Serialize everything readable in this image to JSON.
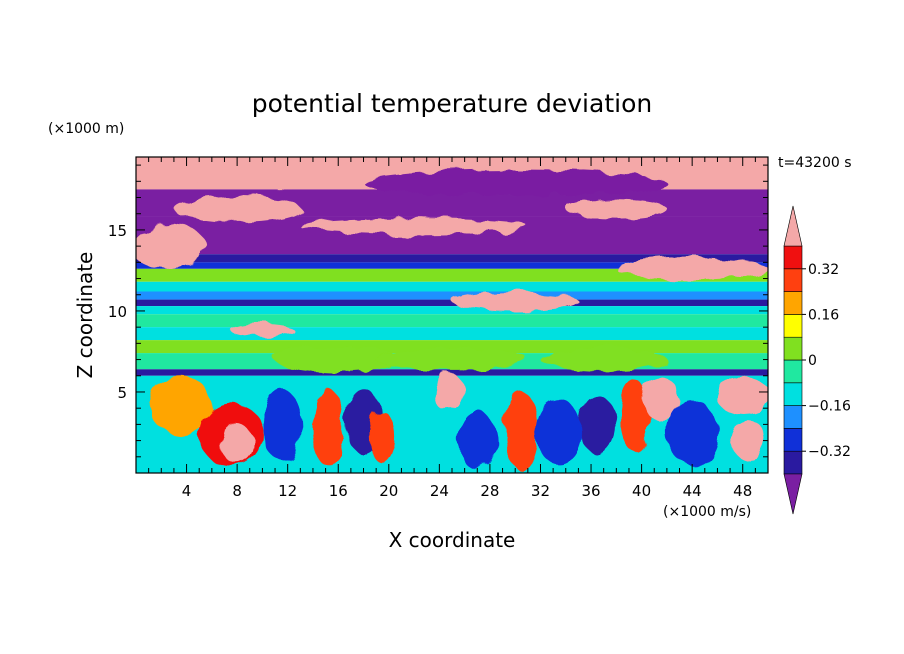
{
  "chart_data": {
    "type": "heatmap",
    "title": "potential temperature deviation",
    "xlabel": "X coordinate",
    "ylabel": "Z coordinate",
    "x_units": "(×1000 m/s)",
    "y_units": "(×1000 m)",
    "time_label": "t=43200 s",
    "xlim": [
      0,
      50
    ],
    "ylim": [
      0,
      19.5
    ],
    "x_ticks": [
      4,
      8,
      12,
      16,
      20,
      24,
      28,
      32,
      36,
      40,
      44,
      48
    ],
    "y_ticks": [
      5,
      10,
      15
    ],
    "colorbar": {
      "levels": [
        -0.4,
        -0.32,
        -0.24,
        -0.16,
        -0.08,
        0,
        0.08,
        0.16,
        0.24,
        0.32,
        0.4
      ],
      "tick_labels": [
        "0.32",
        "0.16",
        "0",
        "−0.16",
        "−0.32"
      ],
      "tick_values": [
        0.32,
        0.16,
        0,
        -0.16,
        -0.32
      ],
      "colors": [
        "#7a1fa2",
        "#2a1aa0",
        "#1030d8",
        "#1e90ff",
        "#00e0e0",
        "#20e8a0",
        "#80e020",
        "#ffff00",
        "#ffa500",
        "#ff4010",
        "#f01010",
        "#f4a8a8"
      ],
      "extend": "both"
    },
    "bands": [
      {
        "z": [
          17.5,
          19.5
        ],
        "value": 0.5
      },
      {
        "z": [
          15.8,
          17.5
        ],
        "value": -0.45
      },
      {
        "z": [
          13.5,
          15.8
        ],
        "value": -0.45
      },
      {
        "z": [
          13.0,
          13.5
        ],
        "value": -0.35
      },
      {
        "z": [
          12.6,
          13.0
        ],
        "value": -0.25
      },
      {
        "z": [
          11.8,
          12.6
        ],
        "value": 0.02
      },
      {
        "z": [
          11.2,
          11.8
        ],
        "value": -0.12
      },
      {
        "z": [
          10.7,
          11.2
        ],
        "value": -0.2
      },
      {
        "z": [
          10.3,
          10.7
        ],
        "value": -0.36
      },
      {
        "z": [
          9.8,
          10.3
        ],
        "value": -0.12
      },
      {
        "z": [
          9.0,
          9.8
        ],
        "value": -0.05
      },
      {
        "z": [
          8.2,
          9.0
        ],
        "value": -0.1
      },
      {
        "z": [
          7.4,
          8.2
        ],
        "value": 0.02
      },
      {
        "z": [
          6.4,
          7.4
        ],
        "value": -0.03
      },
      {
        "z": [
          6.0,
          6.4
        ],
        "value": -0.36
      },
      {
        "z": [
          0,
          6.0
        ],
        "value": -0.1
      }
    ],
    "blobs": [
      {
        "x": 12,
        "z": 18.6,
        "rx": 10,
        "rz": 0.9,
        "value": 0.5
      },
      {
        "x": 30,
        "z": 17.9,
        "rx": 12,
        "rz": 0.8,
        "value": -0.45
      },
      {
        "x": 8,
        "z": 16.3,
        "rx": 5,
        "rz": 0.8,
        "value": 0.5
      },
      {
        "x": 22,
        "z": 15.2,
        "rx": 9,
        "rz": 0.5,
        "value": 0.5
      },
      {
        "x": 38,
        "z": 16.3,
        "rx": 4,
        "rz": 0.6,
        "value": 0.5
      },
      {
        "x": 2.5,
        "z": 14.0,
        "rx": 3,
        "rz": 1.4,
        "value": 0.5
      },
      {
        "x": 44,
        "z": 12.6,
        "rx": 6,
        "rz": 0.7,
        "value": 0.5
      },
      {
        "x": 30,
        "z": 10.6,
        "rx": 5,
        "rz": 0.6,
        "value": 0.5
      },
      {
        "x": 10,
        "z": 8.8,
        "rx": 2.5,
        "rz": 0.4,
        "value": 0.5
      },
      {
        "x": 16,
        "z": 7.0,
        "rx": 5,
        "rz": 0.8,
        "value": 0.06
      },
      {
        "x": 25,
        "z": 7.0,
        "rx": 6,
        "rz": 0.7,
        "value": 0.06
      },
      {
        "x": 37,
        "z": 7.0,
        "rx": 5,
        "rz": 0.7,
        "value": 0.06
      },
      {
        "x": 3.5,
        "z": 4.2,
        "rx": 2.5,
        "rz": 1.8,
        "value": 0.2
      },
      {
        "x": 7.5,
        "z": 2.4,
        "rx": 2.5,
        "rz": 2.0,
        "value": 0.36
      },
      {
        "x": 8.0,
        "z": 1.8,
        "rx": 1.3,
        "rz": 1.2,
        "value": 0.5
      },
      {
        "x": 11.5,
        "z": 3.0,
        "rx": 1.5,
        "rz": 2.2,
        "value": -0.25
      },
      {
        "x": 15.2,
        "z": 2.8,
        "rx": 1.2,
        "rz": 2.4,
        "value": 0.3
      },
      {
        "x": 18.0,
        "z": 3.2,
        "rx": 1.4,
        "rz": 2.0,
        "value": -0.36
      },
      {
        "x": 19.5,
        "z": 2.2,
        "rx": 1.0,
        "rz": 1.6,
        "value": 0.25
      },
      {
        "x": 23.0,
        "z": 3.5,
        "rx": 1.4,
        "rz": 2.0,
        "value": -0.1
      },
      {
        "x": 24.7,
        "z": 5.0,
        "rx": 1.2,
        "rz": 1.2,
        "value": 0.5
      },
      {
        "x": 27.0,
        "z": 2.0,
        "rx": 1.5,
        "rz": 1.8,
        "value": -0.3
      },
      {
        "x": 30.5,
        "z": 2.6,
        "rx": 1.3,
        "rz": 2.4,
        "value": 0.28
      },
      {
        "x": 33.5,
        "z": 2.5,
        "rx": 1.8,
        "rz": 2.0,
        "value": -0.25
      },
      {
        "x": 36.5,
        "z": 3.0,
        "rx": 1.4,
        "rz": 1.8,
        "value": -0.4
      },
      {
        "x": 39.5,
        "z": 3.5,
        "rx": 1.2,
        "rz": 2.2,
        "value": 0.3
      },
      {
        "x": 41.5,
        "z": 4.6,
        "rx": 1.5,
        "rz": 1.3,
        "value": 0.5
      },
      {
        "x": 44.0,
        "z": 2.5,
        "rx": 2.0,
        "rz": 2.0,
        "value": -0.3
      },
      {
        "x": 48.0,
        "z": 4.8,
        "rx": 2.2,
        "rz": 1.1,
        "value": 0.5
      },
      {
        "x": 48.5,
        "z": 2.0,
        "rx": 1.4,
        "rz": 1.2,
        "value": 0.4
      }
    ]
  }
}
